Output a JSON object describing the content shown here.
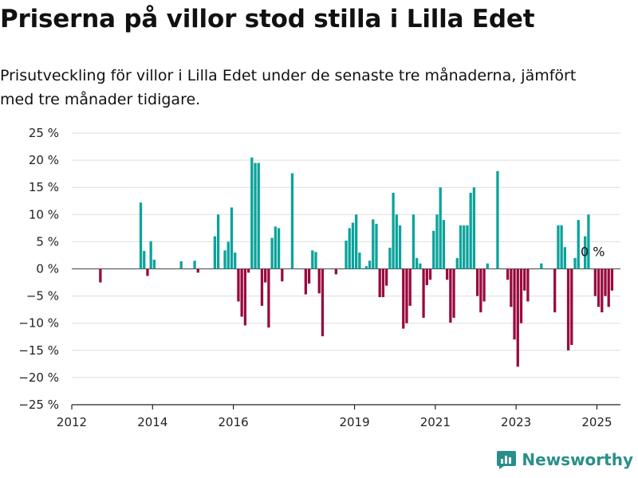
{
  "header": {
    "title": "Priserna på villor stod stilla i Lilla Edet",
    "subtitle": "Prisutveckling för villor i Lilla Edet under de senaste tre månaderna, jämfört med tre månader tidigare."
  },
  "brand": {
    "name": "Newsworthy",
    "icon": "newsworthy-logo-icon"
  },
  "colors": {
    "positive": "#0ba39b",
    "negative": "#990a3e",
    "grid": "#dddddd",
    "axis": "#222222"
  },
  "chart_data": {
    "type": "bar",
    "title": "",
    "xlabel": "",
    "ylabel": "",
    "ylim": [
      -25,
      25
    ],
    "y_ticks": [
      25,
      20,
      15,
      10,
      5,
      0,
      -5,
      -10,
      -15,
      -20,
      -25
    ],
    "y_tick_labels": [
      "25 %",
      "20 %",
      "15 %",
      "10 %",
      "5 %",
      "0 %",
      "−5 %",
      "−10 %",
      "−15 %",
      "−20 %",
      "−25 %"
    ],
    "x_ticks": [
      2012,
      2014,
      2016,
      2019,
      2021,
      2023,
      2025
    ],
    "x_tick_labels": [
      "2012",
      "2014",
      "2016",
      "2019",
      "2021",
      "2023",
      "2025"
    ],
    "xlim": [
      "2012-01",
      "2025-08"
    ],
    "grid": true,
    "annotation": "0 %",
    "series": [
      {
        "values": [
          {
            "x": "2012-09",
            "y": -2.5
          },
          {
            "x": "2013-09",
            "y": 12.2
          },
          {
            "x": "2013-10",
            "y": 3.3
          },
          {
            "x": "2013-11",
            "y": -1.3
          },
          {
            "x": "2013-12",
            "y": 5.1
          },
          {
            "x": "2014-01",
            "y": 1.7
          },
          {
            "x": "2014-09",
            "y": 1.4
          },
          {
            "x": "2015-01",
            "y": 1.5
          },
          {
            "x": "2015-02",
            "y": -0.7
          },
          {
            "x": "2015-07",
            "y": 6
          },
          {
            "x": "2015-08",
            "y": 10
          },
          {
            "x": "2015-10",
            "y": 3.4
          },
          {
            "x": "2015-11",
            "y": 5
          },
          {
            "x": "2015-12",
            "y": 11.3
          },
          {
            "x": "2016-01",
            "y": 3
          },
          {
            "x": "2016-02",
            "y": -6
          },
          {
            "x": "2016-03",
            "y": -8.8
          },
          {
            "x": "2016-04",
            "y": -10.4
          },
          {
            "x": "2016-05",
            "y": -0.7
          },
          {
            "x": "2016-06",
            "y": 20.5
          },
          {
            "x": "2016-07",
            "y": 19.5
          },
          {
            "x": "2016-08",
            "y": 19.5
          },
          {
            "x": "2016-09",
            "y": -6.8
          },
          {
            "x": "2016-10",
            "y": -2.5
          },
          {
            "x": "2016-11",
            "y": -10.8
          },
          {
            "x": "2016-12",
            "y": 5.7
          },
          {
            "x": "2017-01",
            "y": 7.8
          },
          {
            "x": "2017-02",
            "y": 7.5
          },
          {
            "x": "2017-03",
            "y": -2.3
          },
          {
            "x": "2017-06",
            "y": 17.6
          },
          {
            "x": "2017-10",
            "y": -4.7
          },
          {
            "x": "2017-11",
            "y": -2.7
          },
          {
            "x": "2017-12",
            "y": 3.4
          },
          {
            "x": "2018-01",
            "y": 3.1
          },
          {
            "x": "2018-02",
            "y": -4.5
          },
          {
            "x": "2018-03",
            "y": -12.4
          },
          {
            "x": "2018-07",
            "y": -1
          },
          {
            "x": "2018-10",
            "y": 5.2
          },
          {
            "x": "2018-11",
            "y": 7.5
          },
          {
            "x": "2018-12",
            "y": 8.5
          },
          {
            "x": "2019-01",
            "y": 10
          },
          {
            "x": "2019-02",
            "y": 3
          },
          {
            "x": "2019-04",
            "y": 0.5
          },
          {
            "x": "2019-05",
            "y": 1.5
          },
          {
            "x": "2019-06",
            "y": 9.1
          },
          {
            "x": "2019-07",
            "y": 8.3
          },
          {
            "x": "2019-08",
            "y": -5.2
          },
          {
            "x": "2019-09",
            "y": -5.2
          },
          {
            "x": "2019-10",
            "y": -3.1
          },
          {
            "x": "2019-11",
            "y": 3.9
          },
          {
            "x": "2019-12",
            "y": 14
          },
          {
            "x": "2020-01",
            "y": 10
          },
          {
            "x": "2020-02",
            "y": 8
          },
          {
            "x": "2020-03",
            "y": -11
          },
          {
            "x": "2020-04",
            "y": -10
          },
          {
            "x": "2020-05",
            "y": -6.8
          },
          {
            "x": "2020-06",
            "y": 10
          },
          {
            "x": "2020-07",
            "y": 2
          },
          {
            "x": "2020-08",
            "y": 1
          },
          {
            "x": "2020-09",
            "y": -9
          },
          {
            "x": "2020-10",
            "y": -3
          },
          {
            "x": "2020-11",
            "y": -2
          },
          {
            "x": "2020-12",
            "y": 7
          },
          {
            "x": "2021-01",
            "y": 10
          },
          {
            "x": "2021-02",
            "y": 15
          },
          {
            "x": "2021-03",
            "y": 9
          },
          {
            "x": "2021-04",
            "y": -2
          },
          {
            "x": "2021-05",
            "y": -9.9
          },
          {
            "x": "2021-06",
            "y": -9
          },
          {
            "x": "2021-07",
            "y": 2
          },
          {
            "x": "2021-08",
            "y": 8
          },
          {
            "x": "2021-09",
            "y": 8
          },
          {
            "x": "2021-10",
            "y": 8
          },
          {
            "x": "2021-11",
            "y": 14
          },
          {
            "x": "2021-12",
            "y": 15
          },
          {
            "x": "2022-01",
            "y": -5
          },
          {
            "x": "2022-02",
            "y": -8
          },
          {
            "x": "2022-03",
            "y": -6
          },
          {
            "x": "2022-04",
            "y": 1
          },
          {
            "x": "2022-07",
            "y": 18
          },
          {
            "x": "2022-10",
            "y": -2
          },
          {
            "x": "2022-11",
            "y": -7
          },
          {
            "x": "2022-12",
            "y": -13
          },
          {
            "x": "2023-01",
            "y": -18
          },
          {
            "x": "2023-02",
            "y": -10
          },
          {
            "x": "2023-03",
            "y": -4
          },
          {
            "x": "2023-04",
            "y": -6
          },
          {
            "x": "2023-08",
            "y": 1
          },
          {
            "x": "2023-12",
            "y": -8
          },
          {
            "x": "2024-01",
            "y": 8
          },
          {
            "x": "2024-02",
            "y": 8
          },
          {
            "x": "2024-03",
            "y": 4
          },
          {
            "x": "2024-04",
            "y": -15
          },
          {
            "x": "2024-05",
            "y": -14
          },
          {
            "x": "2024-06",
            "y": 2
          },
          {
            "x": "2024-07",
            "y": 9
          },
          {
            "x": "2024-09",
            "y": 6
          },
          {
            "x": "2024-10",
            "y": 10
          },
          {
            "x": "2024-12",
            "y": -5
          },
          {
            "x": "2025-01",
            "y": -7
          },
          {
            "x": "2025-02",
            "y": -8
          },
          {
            "x": "2025-03",
            "y": -5
          },
          {
            "x": "2025-04",
            "y": -7
          },
          {
            "x": "2025-05",
            "y": -4
          }
        ]
      }
    ]
  }
}
